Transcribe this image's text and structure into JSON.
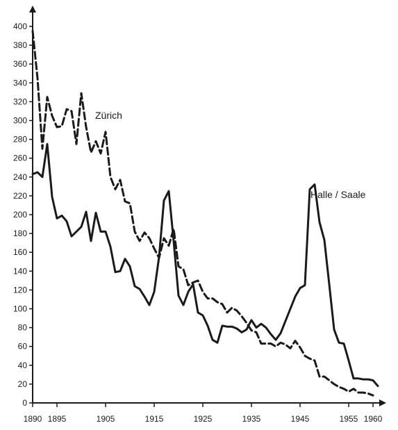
{
  "chart_data": {
    "type": "line",
    "title": "",
    "xlabel": "",
    "ylabel": "",
    "xlim": [
      1890,
      1962
    ],
    "ylim": [
      0,
      410
    ],
    "grid": false,
    "x_ticks": [
      1890,
      1895,
      1905,
      1915,
      1925,
      1935,
      1945,
      1955,
      1960
    ],
    "y_ticks": [
      0,
      20,
      40,
      60,
      80,
      100,
      120,
      140,
      160,
      180,
      200,
      220,
      240,
      260,
      280,
      300,
      320,
      340,
      360,
      380,
      400
    ],
    "series": [
      {
        "name": "Zürich",
        "style": "dashed",
        "color": "#1a1a1a",
        "points": [
          [
            1890,
            395
          ],
          [
            1891,
            345
          ],
          [
            1892,
            270
          ],
          [
            1893,
            325
          ],
          [
            1894,
            305
          ],
          [
            1895,
            293
          ],
          [
            1896,
            294
          ],
          [
            1897,
            312
          ],
          [
            1898,
            310
          ],
          [
            1899,
            275
          ],
          [
            1900,
            329
          ],
          [
            1901,
            293
          ],
          [
            1902,
            266
          ],
          [
            1903,
            278
          ],
          [
            1904,
            265
          ],
          [
            1905,
            288
          ],
          [
            1906,
            240
          ],
          [
            1907,
            227
          ],
          [
            1908,
            237
          ],
          [
            1909,
            214
          ],
          [
            1910,
            212
          ],
          [
            1911,
            182
          ],
          [
            1912,
            172
          ],
          [
            1913,
            181
          ],
          [
            1914,
            175
          ],
          [
            1915,
            164
          ],
          [
            1916,
            154
          ],
          [
            1917,
            175
          ],
          [
            1918,
            167
          ],
          [
            1919,
            185
          ],
          [
            1920,
            145
          ],
          [
            1921,
            142
          ],
          [
            1922,
            125
          ],
          [
            1923,
            128
          ],
          [
            1924,
            130
          ],
          [
            1925,
            118
          ],
          [
            1926,
            111
          ],
          [
            1927,
            111
          ],
          [
            1928,
            107
          ],
          [
            1929,
            105
          ],
          [
            1930,
            96
          ],
          [
            1931,
            101
          ],
          [
            1932,
            98
          ],
          [
            1933,
            92
          ],
          [
            1934,
            85
          ],
          [
            1935,
            77
          ],
          [
            1936,
            75
          ],
          [
            1937,
            63
          ],
          [
            1938,
            63
          ],
          [
            1939,
            63
          ],
          [
            1940,
            60
          ],
          [
            1941,
            64
          ],
          [
            1942,
            62
          ],
          [
            1943,
            58
          ],
          [
            1944,
            66
          ],
          [
            1945,
            59
          ],
          [
            1946,
            50
          ],
          [
            1947,
            47
          ],
          [
            1948,
            45
          ],
          [
            1949,
            28
          ],
          [
            1950,
            28
          ],
          [
            1951,
            24
          ],
          [
            1952,
            20
          ],
          [
            1953,
            17
          ],
          [
            1954,
            15
          ],
          [
            1955,
            12
          ],
          [
            1956,
            15
          ],
          [
            1957,
            11
          ],
          [
            1958,
            11
          ],
          [
            1959,
            10
          ],
          [
            1960,
            8
          ]
        ]
      },
      {
        "name": "Halle / Saale",
        "style": "solid",
        "color": "#1a1a1a",
        "points": [
          [
            1890,
            243
          ],
          [
            1891,
            245
          ],
          [
            1892,
            240
          ],
          [
            1893,
            275
          ],
          [
            1894,
            219
          ],
          [
            1895,
            196
          ],
          [
            1896,
            199
          ],
          [
            1897,
            193
          ],
          [
            1898,
            177
          ],
          [
            1899,
            182
          ],
          [
            1900,
            187
          ],
          [
            1901,
            203
          ],
          [
            1902,
            172
          ],
          [
            1903,
            202
          ],
          [
            1904,
            182
          ],
          [
            1905,
            182
          ],
          [
            1906,
            166
          ],
          [
            1907,
            139
          ],
          [
            1908,
            140
          ],
          [
            1909,
            153
          ],
          [
            1910,
            145
          ],
          [
            1911,
            124
          ],
          [
            1912,
            121
          ],
          [
            1913,
            113
          ],
          [
            1914,
            104
          ],
          [
            1915,
            118
          ],
          [
            1916,
            155
          ],
          [
            1917,
            215
          ],
          [
            1918,
            225
          ],
          [
            1919,
            172
          ],
          [
            1920,
            114
          ],
          [
            1921,
            104
          ],
          [
            1922,
            118
          ],
          [
            1923,
            126
          ],
          [
            1924,
            96
          ],
          [
            1925,
            93
          ],
          [
            1926,
            82
          ],
          [
            1927,
            67
          ],
          [
            1928,
            64
          ],
          [
            1929,
            82
          ],
          [
            1930,
            81
          ],
          [
            1931,
            81
          ],
          [
            1932,
            79
          ],
          [
            1933,
            75
          ],
          [
            1934,
            78
          ],
          [
            1935,
            88
          ],
          [
            1936,
            80
          ],
          [
            1937,
            84
          ],
          [
            1938,
            80
          ],
          [
            1939,
            73
          ],
          [
            1940,
            67
          ],
          [
            1941,
            74
          ],
          [
            1942,
            87
          ],
          [
            1943,
            100
          ],
          [
            1944,
            113
          ],
          [
            1945,
            122
          ],
          [
            1946,
            125
          ],
          [
            1947,
            227
          ],
          [
            1948,
            232
          ],
          [
            1949,
            192
          ],
          [
            1950,
            173
          ],
          [
            1951,
            126
          ],
          [
            1952,
            78
          ],
          [
            1953,
            64
          ],
          [
            1954,
            63
          ],
          [
            1955,
            45
          ],
          [
            1956,
            26
          ],
          [
            1957,
            26
          ],
          [
            1958,
            25
          ],
          [
            1959,
            25
          ],
          [
            1960,
            24
          ],
          [
            1961,
            18
          ]
        ]
      }
    ]
  }
}
